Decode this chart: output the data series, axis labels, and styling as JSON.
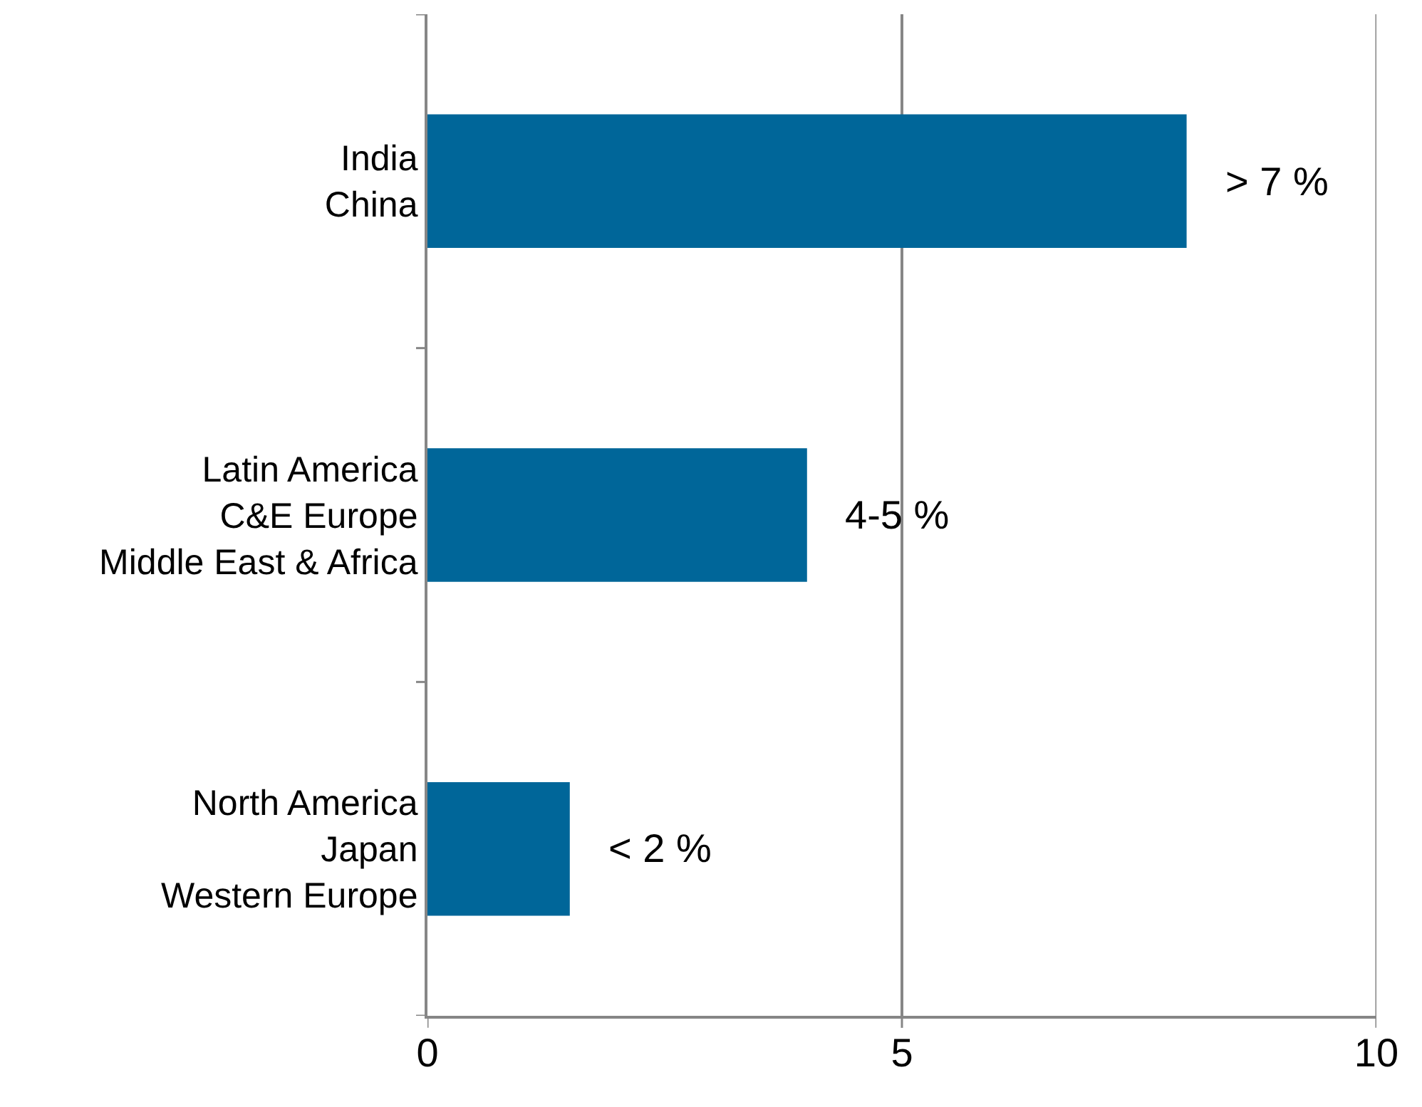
{
  "chart_data": {
    "type": "bar",
    "orientation": "horizontal",
    "categories": [
      "India\nChina",
      "Latin America\nC&E Europe\nMiddle East & Africa",
      "North America\nJapan\nWestern Europe"
    ],
    "values": [
      8,
      4,
      1.5
    ],
    "color": "#006699",
    "xlim": [
      0,
      10
    ],
    "xticks": [
      0,
      5,
      10
    ],
    "grid": "x",
    "value_labels": [
      "> 7 %",
      "4-5 %",
      "< 2 %"
    ]
  }
}
